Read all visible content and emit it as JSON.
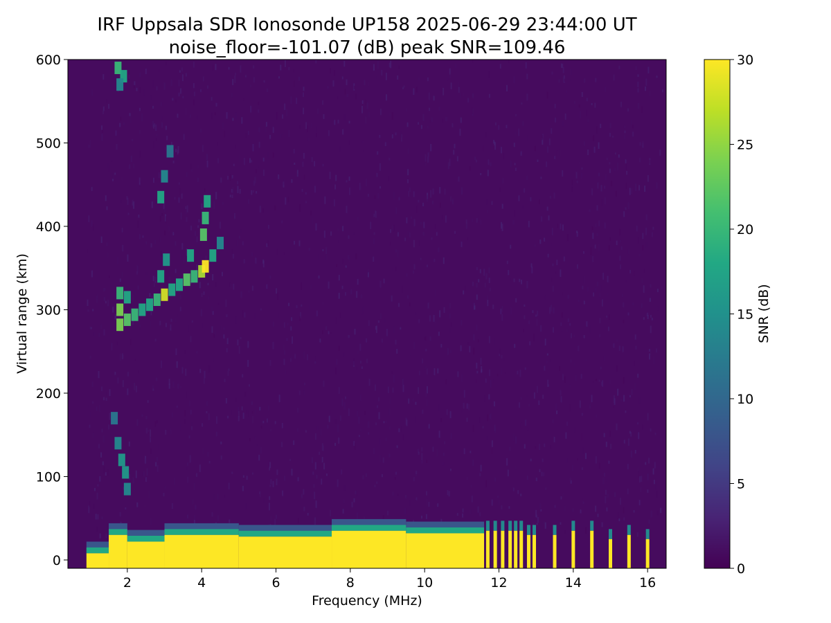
{
  "chart_data": {
    "type": "heatmap",
    "title": "IRF Uppsala SDR Ionosonde UP158 2025-06-29 23:44:00  UT",
    "subtitle": "noise_floor=-101.07 (dB) peak SNR=109.46",
    "xlabel": "Frequency (MHz)",
    "ylabel": "Virtual range (km)",
    "colorbar_label": "SNR (dB)",
    "colormap": "viridis",
    "xlim": [
      0.4,
      16.5
    ],
    "ylim": [
      -10,
      600
    ],
    "clim": [
      0,
      30
    ],
    "x_ticks": [
      2,
      4,
      6,
      8,
      10,
      12,
      14,
      16
    ],
    "y_ticks": [
      0,
      100,
      200,
      300,
      400,
      500,
      600
    ],
    "colorbar_ticks": [
      0,
      5,
      10,
      15,
      20,
      25,
      30
    ],
    "grid": false,
    "background_snr": 0.5,
    "ground_echo_band": [
      {
        "x": [
          0.9,
          1.5
        ],
        "range_top": 8,
        "snr": 30
      },
      {
        "x": [
          1.5,
          2.0
        ],
        "range_top": 30,
        "snr": 30
      },
      {
        "x": [
          2.0,
          3.0
        ],
        "range_top": 22,
        "snr": 30
      },
      {
        "x": [
          3.0,
          5.0
        ],
        "range_top": 30,
        "snr": 30
      },
      {
        "x": [
          5.0,
          7.5
        ],
        "range_top": 28,
        "snr": 30
      },
      {
        "x": [
          7.5,
          9.5
        ],
        "range_top": 35,
        "snr": 30
      },
      {
        "x": [
          9.5,
          11.6
        ],
        "range_top": 32,
        "snr": 30
      }
    ],
    "high_freq_lines": [
      {
        "x": 11.7,
        "range_top": 35,
        "snr": 30
      },
      {
        "x": 11.9,
        "range_top": 35,
        "snr": 30
      },
      {
        "x": 12.1,
        "range_top": 35,
        "snr": 30
      },
      {
        "x": 12.3,
        "range_top": 35,
        "snr": 30
      },
      {
        "x": 12.45,
        "range_top": 35,
        "snr": 30
      },
      {
        "x": 12.6,
        "range_top": 35,
        "snr": 30
      },
      {
        "x": 12.8,
        "range_top": 30,
        "snr": 30
      },
      {
        "x": 12.95,
        "range_top": 30,
        "snr": 30
      },
      {
        "x": 13.5,
        "range_top": 30,
        "snr": 30
      },
      {
        "x": 14.0,
        "range_top": 35,
        "snr": 30
      },
      {
        "x": 14.5,
        "range_top": 35,
        "snr": 30
      },
      {
        "x": 15.0,
        "range_top": 25,
        "snr": 30
      },
      {
        "x": 15.5,
        "range_top": 30,
        "snr": 30
      },
      {
        "x": 16.0,
        "range_top": 25,
        "snr": 30
      }
    ],
    "traces": [
      {
        "name": "",
        "points": [
          {
            "x": 1.8,
            "range": 282,
            "snr": 24
          },
          {
            "x": 2.0,
            "range": 288,
            "snr": 22
          },
          {
            "x": 2.2,
            "range": 294,
            "snr": 20
          },
          {
            "x": 2.4,
            "range": 300,
            "snr": 18
          },
          {
            "x": 2.6,
            "range": 306,
            "snr": 18
          },
          {
            "x": 2.8,
            "range": 312,
            "snr": 20
          },
          {
            "x": 3.0,
            "range": 318,
            "snr": 28
          },
          {
            "x": 3.2,
            "range": 324,
            "snr": 18
          },
          {
            "x": 3.4,
            "range": 330,
            "snr": 18
          },
          {
            "x": 3.6,
            "range": 336,
            "snr": 22
          },
          {
            "x": 3.8,
            "range": 340,
            "snr": 20
          },
          {
            "x": 4.0,
            "range": 346,
            "snr": 26
          },
          {
            "x": 4.1,
            "range": 352,
            "snr": 30
          },
          {
            "x": 4.3,
            "range": 365,
            "snr": 18
          },
          {
            "x": 4.5,
            "range": 380,
            "snr": 14
          }
        ]
      },
      {
        "name": "",
        "points": [
          {
            "x": 1.8,
            "range": 300,
            "snr": 24
          },
          {
            "x": 1.8,
            "range": 320,
            "snr": 20
          },
          {
            "x": 2.0,
            "range": 315,
            "snr": 18
          },
          {
            "x": 2.9,
            "range": 340,
            "snr": 18
          },
          {
            "x": 3.05,
            "range": 360,
            "snr": 16
          },
          {
            "x": 2.9,
            "range": 435,
            "snr": 18
          },
          {
            "x": 3.0,
            "range": 460,
            "snr": 14
          },
          {
            "x": 3.15,
            "range": 490,
            "snr": 12
          },
          {
            "x": 3.7,
            "range": 365,
            "snr": 18
          },
          {
            "x": 4.05,
            "range": 390,
            "snr": 22
          },
          {
            "x": 4.1,
            "range": 410,
            "snr": 20
          },
          {
            "x": 4.15,
            "range": 430,
            "snr": 18
          }
        ]
      },
      {
        "name": "",
        "points": [
          {
            "x": 1.65,
            "range": 170,
            "snr": 12
          },
          {
            "x": 1.75,
            "range": 140,
            "snr": 14
          },
          {
            "x": 1.85,
            "range": 120,
            "snr": 16
          },
          {
            "x": 1.95,
            "range": 105,
            "snr": 16
          },
          {
            "x": 2.0,
            "range": 85,
            "snr": 14
          }
        ]
      },
      {
        "name": "",
        "points": [
          {
            "x": 1.75,
            "range": 590,
            "snr": 20
          },
          {
            "x": 1.9,
            "range": 580,
            "snr": 18
          },
          {
            "x": 1.8,
            "range": 570,
            "snr": 14
          }
        ]
      }
    ]
  }
}
